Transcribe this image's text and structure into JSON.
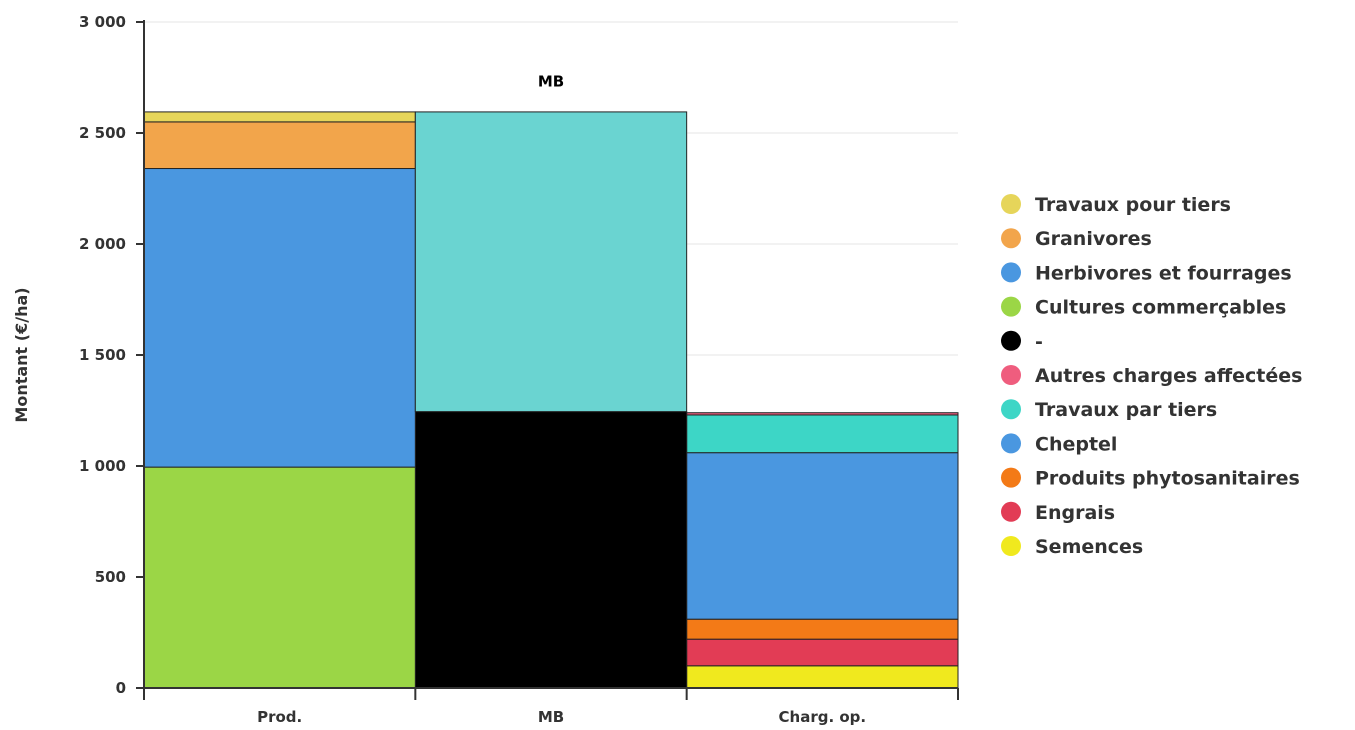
{
  "chart_data": {
    "type": "bar",
    "stacked": true,
    "ylabel": "Montant (€/ha)",
    "ylim": [
      0,
      3000
    ],
    "y_ticks": [
      0,
      500,
      1000,
      1500,
      2000,
      2500,
      3000
    ],
    "y_tick_labels": [
      "0",
      "500",
      "1 000",
      "1 500",
      "2 000",
      "2 500",
      "3 000"
    ],
    "grid": true,
    "legend_position": "right",
    "categories": [
      "Prod.",
      "MB",
      "Charg. op."
    ],
    "series": [
      {
        "name": "Semences",
        "color": "#f0e91e",
        "values": [
          0,
          0,
          100
        ],
        "legend": true
      },
      {
        "name": "Engrais",
        "color": "#e23c55",
        "values": [
          0,
          0,
          120
        ],
        "legend": true
      },
      {
        "name": "Produits phytosanitaires",
        "color": "#f37a17",
        "values": [
          0,
          0,
          90
        ],
        "legend": true
      },
      {
        "name": "Cheptel",
        "color": "#4a97e0",
        "values": [
          0,
          0,
          750
        ],
        "legend": true
      },
      {
        "name": "Travaux par tiers",
        "color": "#3dd6c6",
        "values": [
          0,
          0,
          170
        ],
        "legend": true
      },
      {
        "name": "Autres charges affectées",
        "color": "#ef5d7e",
        "values": [
          0,
          0,
          10
        ],
        "legend": true
      },
      {
        "name": "-",
        "color": "#000000",
        "values": [
          0,
          1245,
          0
        ],
        "legend": true
      },
      {
        "name": "Cultures commerçables",
        "color": "#9bd646",
        "values": [
          995,
          0,
          0
        ],
        "legend": true
      },
      {
        "name": "Herbivores et fourrages",
        "color": "#4a97e0",
        "values": [
          1345,
          0,
          0
        ],
        "legend": true
      },
      {
        "name": "Granivores",
        "color": "#f2a54b",
        "values": [
          210,
          0,
          0
        ],
        "legend": true
      },
      {
        "name": "Travaux pour tiers",
        "color": "#e6d55a",
        "values": [
          45,
          0,
          0
        ],
        "legend": true
      },
      {
        "name": "MB",
        "color": "#6ad4d1",
        "values": [
          0,
          1350,
          0
        ],
        "legend": false,
        "label": "MB"
      }
    ],
    "legend_order": [
      "Travaux pour tiers",
      "Granivores",
      "Herbivores et fourrages",
      "Cultures commerçables",
      "-",
      "Autres charges affectées",
      "Travaux par tiers",
      "Cheptel",
      "Produits phytosanitaires",
      "Engrais",
      "Semences"
    ]
  }
}
